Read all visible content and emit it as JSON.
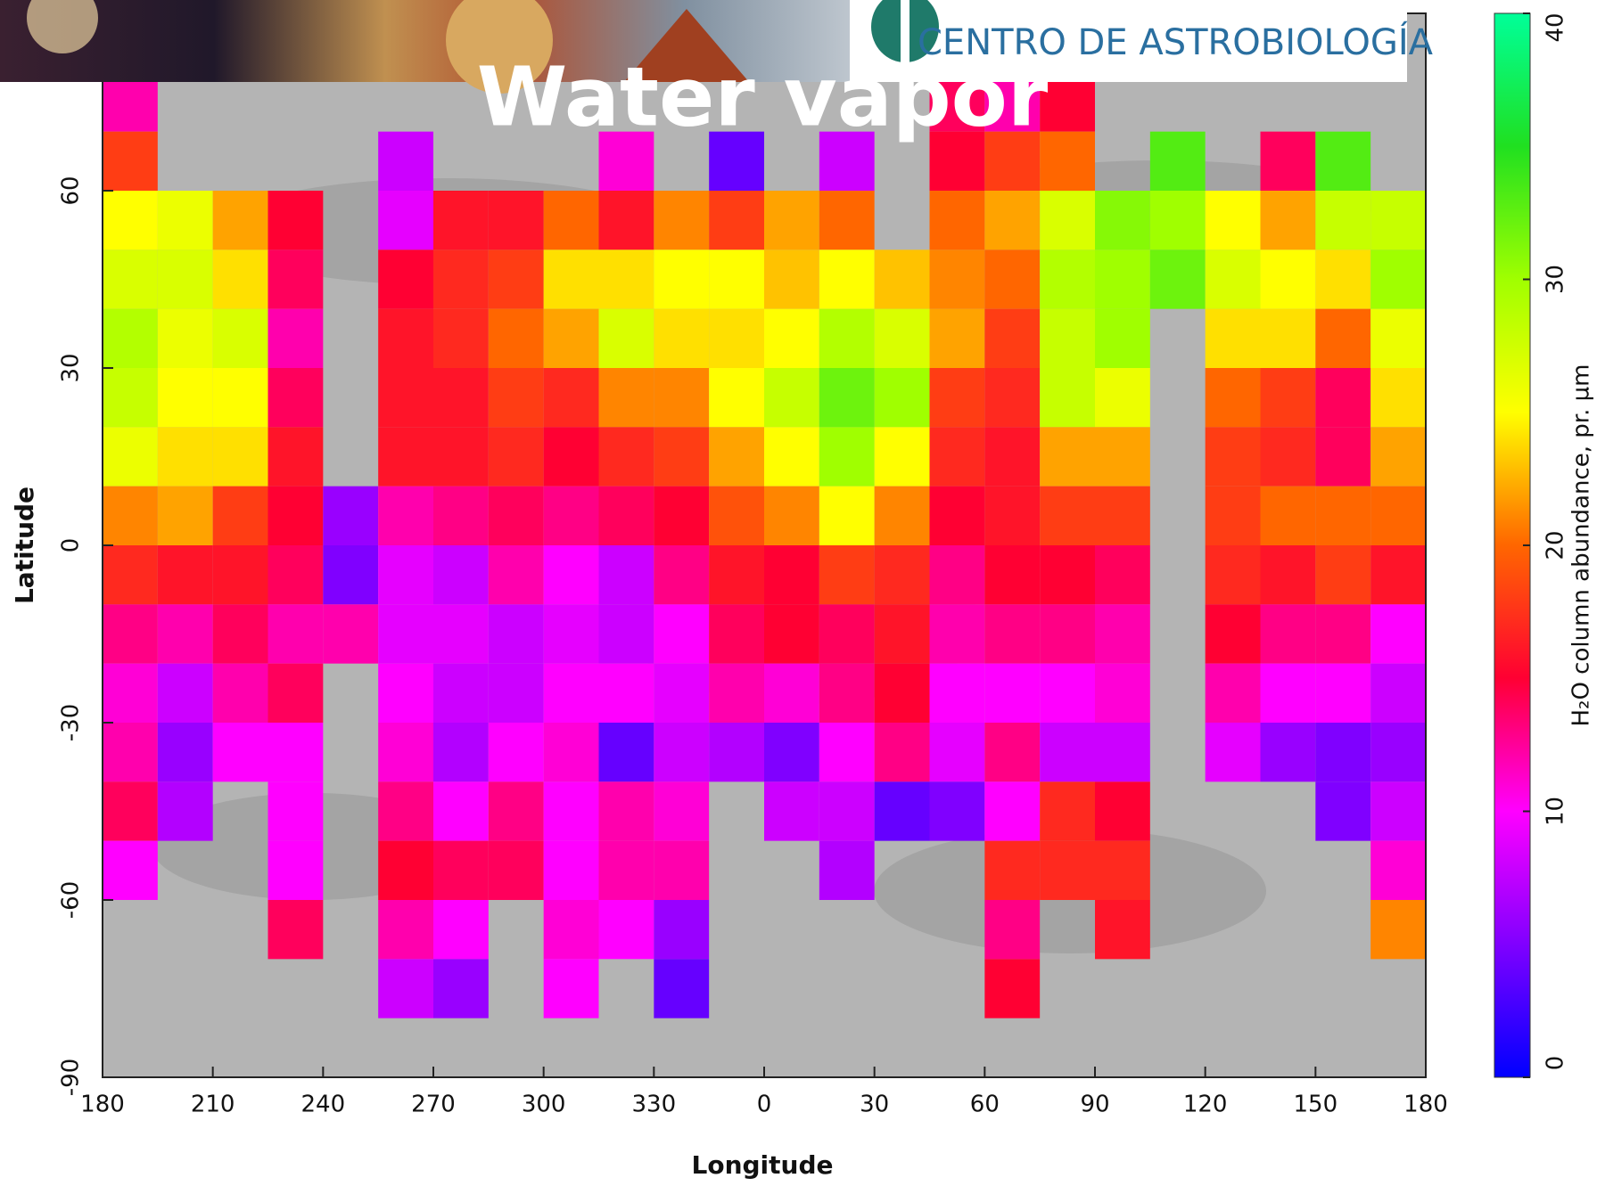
{
  "chart_data": {
    "type": "heatmap",
    "title": "Water vapor",
    "banner": "CENTRO DE ASTROBIOLOGÍA",
    "xlabel": "Longitude",
    "ylabel": "Latitude",
    "colorbar_label": "H₂O column abundance, pr. µm",
    "xlim": [
      180,
      540
    ],
    "xticks": [
      180,
      210,
      240,
      270,
      300,
      330,
      {
        "value": 360,
        "label": "0"
      },
      {
        "value": 390,
        "label": "30"
      },
      {
        "value": 420,
        "label": "60"
      },
      {
        "value": 450,
        "label": "90"
      },
      {
        "value": 480,
        "label": "120"
      },
      {
        "value": 510,
        "label": "150"
      },
      {
        "value": 540,
        "label": "180"
      }
    ],
    "ylim": [
      -90,
      90
    ],
    "yticks": [
      -90,
      -60,
      -30,
      0,
      30,
      60
    ],
    "zlim": [
      0,
      40
    ],
    "zticks": [
      0,
      10,
      20,
      30,
      40
    ],
    "x": [
      187.5,
      202.5,
      217.5,
      232.5,
      247.5,
      262.5,
      277.5,
      292.5,
      307.5,
      322.5,
      337.5,
      352.5,
      367.5,
      382.5,
      397.5,
      412.5,
      427.5,
      442.5,
      457.5,
      472.5,
      487.5,
      502.5,
      517.5,
      532.5
    ],
    "y": [
      85,
      75,
      65,
      55,
      45,
      35,
      25,
      15,
      5,
      -5,
      -15,
      -25,
      -35,
      -45,
      -55,
      -65,
      -75,
      -85
    ],
    "values": [
      [
        null,
        12,
        18,
        25,
        27,
        29,
        28,
        26,
        21,
        17,
        13,
        11,
        12,
        14,
        10,
        null,
        null,
        null
      ],
      [
        null,
        null,
        null,
        26,
        27,
        26,
        25,
        24,
        22,
        16,
        12,
        8,
        6,
        7,
        null,
        null,
        null,
        null
      ],
      [
        null,
        null,
        null,
        22,
        24,
        27,
        25,
        24,
        18,
        16,
        14,
        12,
        10,
        null,
        null,
        null,
        null,
        null
      ],
      [
        null,
        null,
        null,
        15,
        14,
        12,
        14,
        16,
        15,
        14,
        12,
        14,
        10,
        10,
        10,
        14,
        null,
        null
      ],
      [
        null,
        null,
        null,
        null,
        null,
        null,
        null,
        null,
        6,
        5,
        12,
        null,
        null,
        null,
        null,
        null,
        null,
        null
      ],
      [
        null,
        null,
        8,
        9,
        15,
        16,
        16,
        16,
        12,
        9,
        9,
        10,
        11,
        13,
        15,
        12,
        8,
        null
      ],
      [
        null,
        null,
        null,
        16,
        17,
        17,
        16,
        16,
        13,
        8,
        9,
        8,
        7,
        10,
        14,
        10,
        6,
        null
      ],
      [
        null,
        null,
        null,
        16,
        18,
        20,
        18,
        17,
        14,
        12,
        8,
        8,
        10,
        13,
        14,
        null,
        null,
        null
      ],
      [
        null,
        null,
        null,
        20,
        24,
        22,
        17,
        15,
        13,
        10,
        9,
        10,
        11,
        10,
        10,
        11,
        10,
        null
      ],
      [
        null,
        null,
        11,
        16,
        24,
        27,
        21,
        17,
        14,
        8,
        8,
        10,
        4,
        12,
        12,
        10,
        null,
        null
      ],
      [
        null,
        null,
        null,
        21,
        25,
        24,
        21,
        18,
        15,
        13,
        10,
        9,
        8,
        11,
        12,
        6,
        4,
        null
      ],
      [
        null,
        null,
        4,
        18,
        25,
        24,
        25,
        22,
        19,
        16,
        14,
        12,
        7,
        null,
        null,
        null,
        null,
        null
      ],
      [
        null,
        null,
        null,
        22,
        23,
        25,
        28,
        25,
        21,
        15,
        15,
        11,
        5,
        8,
        null,
        null,
        null,
        null
      ],
      [
        null,
        null,
        8,
        20,
        25,
        29,
        32,
        30,
        25,
        18,
        14,
        13,
        10,
        8,
        7,
        null,
        null,
        null
      ],
      [
        null,
        null,
        null,
        null,
        23,
        27,
        30,
        25,
        21,
        17,
        16,
        15,
        13,
        4,
        null,
        null,
        null,
        null
      ],
      [
        null,
        14,
        15,
        20,
        21,
        22,
        18,
        17,
        15,
        13,
        12,
        10,
        9,
        5,
        null,
        null,
        null,
        null
      ],
      [
        null,
        12,
        18,
        22,
        20,
        18,
        17,
        16,
        16,
        15,
        13,
        10,
        13,
        10,
        17,
        13,
        15,
        null
      ],
      [
        null,
        15,
        20,
        27,
        29,
        28,
        28,
        22,
        18,
        15,
        13,
        10,
        8,
        17,
        17,
        null,
        null,
        null
      ],
      [
        null,
        null,
        null,
        31,
        30,
        30,
        26,
        22,
        18,
        14,
        12,
        11,
        8,
        15,
        17,
        16,
        null,
        null
      ],
      [
        null,
        null,
        33,
        30,
        32,
        null,
        null,
        null,
        null,
        null,
        null,
        null,
        null,
        null,
        null,
        null,
        null,
        null
      ],
      [
        null,
        null,
        null,
        25,
        27,
        24,
        20,
        18,
        18,
        17,
        15,
        12,
        9,
        null,
        null,
        null,
        null,
        null
      ],
      [
        null,
        null,
        14,
        22,
        25,
        24,
        18,
        17,
        20,
        16,
        13,
        10,
        6,
        null,
        null,
        null,
        null,
        null
      ],
      [
        null,
        null,
        33,
        28,
        24,
        20,
        14,
        14,
        20,
        18,
        13,
        10,
        5,
        5,
        null,
        null,
        null,
        null
      ],
      [
        null,
        null,
        null,
        28,
        30,
        26,
        24,
        22,
        20,
        16,
        10,
        8,
        6,
        8,
        11,
        21,
        null,
        null
      ]
    ]
  }
}
